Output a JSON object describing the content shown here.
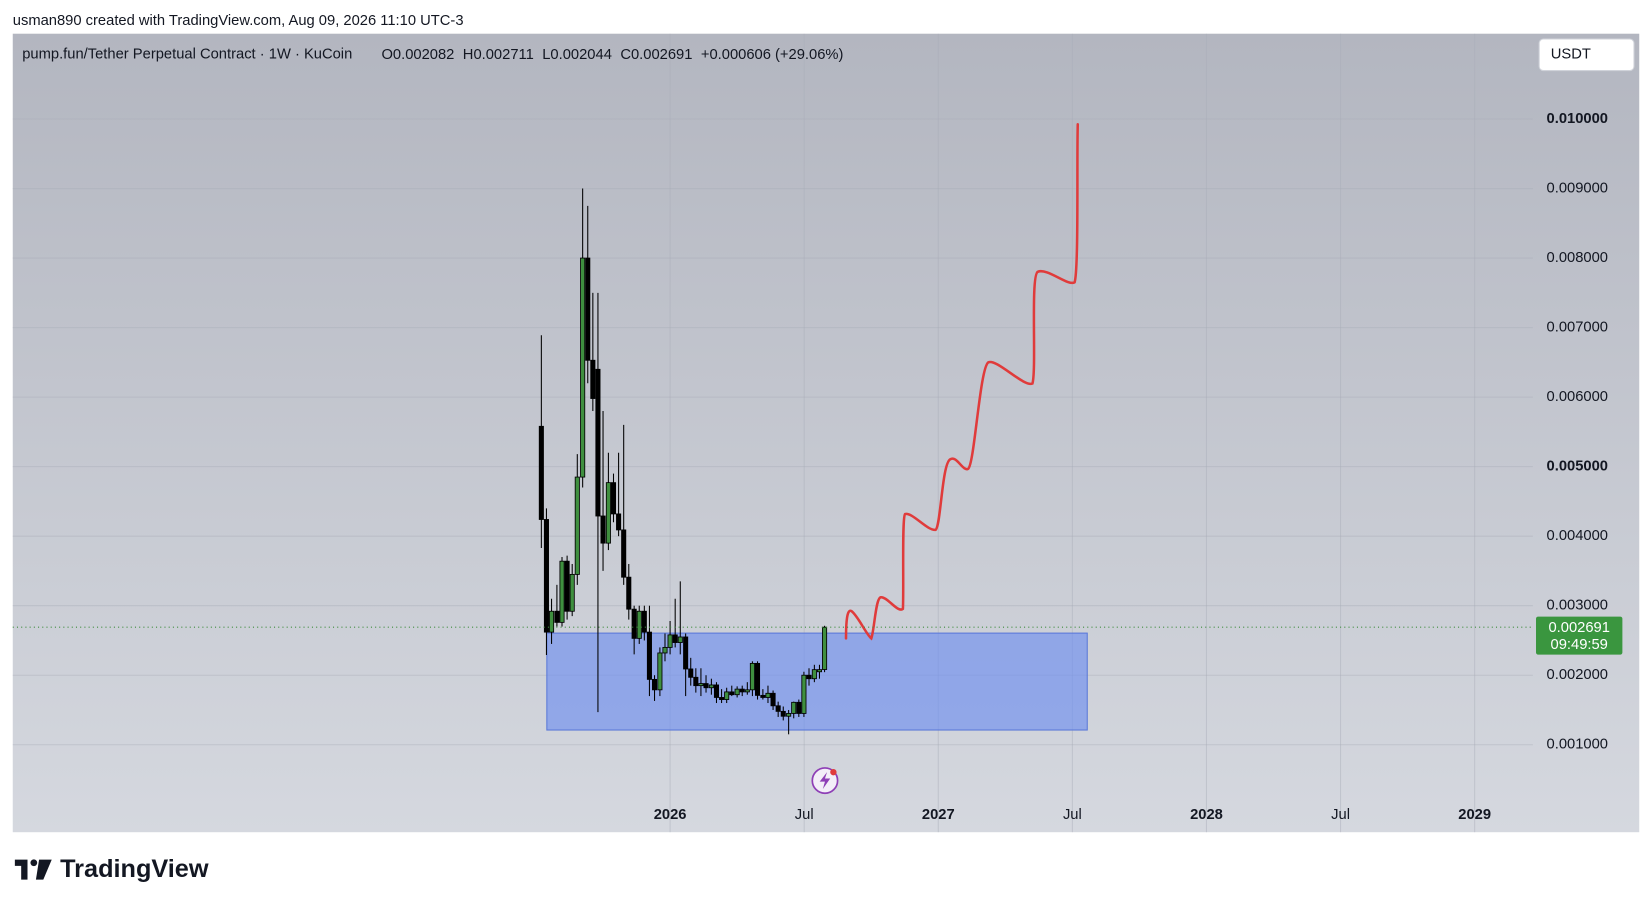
{
  "header": {
    "attribution": "usman890 created with TradingView.com, Aug 09, 2026 11:10 UTC-3"
  },
  "chart_data": {
    "type": "candlestick",
    "title": "pump.fun/Tether Perpetual Contract · 1W · KuCoin",
    "ohlc_labels": [
      "O0.002082",
      "H0.002711",
      "L0.002044",
      "C0.002691",
      "+0.000606 (+29.06%)"
    ],
    "currency": "USDT",
    "brand": "TradingView",
    "up_color": "#3f8f3f",
    "down_color": "#000000",
    "x": [
      2025.52,
      2025.539,
      2025.558,
      2025.578,
      2025.597,
      2025.616,
      2025.635,
      2025.654,
      2025.674,
      2025.693,
      2025.712,
      2025.731,
      2025.75,
      2025.77,
      2025.789,
      2025.808,
      2025.827,
      2025.846,
      2025.866,
      2025.885,
      2025.904,
      2025.923,
      2025.942,
      2025.962,
      2025.981,
      2026.0,
      2026.019,
      2026.038,
      2026.058,
      2026.077,
      2026.096,
      2026.115,
      2026.134,
      2026.154,
      2026.173,
      2026.192,
      2026.211,
      2026.23,
      2026.25,
      2026.269,
      2026.288,
      2026.307,
      2026.326,
      2026.346,
      2026.365,
      2026.384,
      2026.403,
      2026.422,
      2026.442,
      2026.461,
      2026.48,
      2026.499,
      2026.518,
      2026.538,
      2026.557,
      2026.576
    ],
    "open": [
      0.00558,
      0.00424,
      0.00262,
      0.00292,
      0.00276,
      0.00364,
      0.00292,
      0.00345,
      0.00485,
      0.008,
      0.00653,
      0.0064,
      0.00429,
      0.0039,
      0.00477,
      0.00432,
      0.00409,
      0.00341,
      0.00295,
      0.00253,
      0.00292,
      0.00262,
      0.00194,
      0.00179,
      0.00232,
      0.0024,
      0.00258,
      0.00247,
      0.00255,
      0.00209,
      0.00197,
      0.00185,
      0.00188,
      0.00182,
      0.00186,
      0.00168,
      0.00165,
      0.00176,
      0.00172,
      0.0018,
      0.00176,
      0.00179,
      0.00217,
      0.00171,
      0.00168,
      0.00174,
      0.00156,
      0.00148,
      0.00141,
      0.00145,
      0.00161,
      0.00145,
      0.002,
      0.00195,
      0.00205,
      0.002082
    ],
    "high": [
      0.00689,
      0.0044,
      0.0031,
      0.0033,
      0.0037,
      0.00372,
      0.0036,
      0.00518,
      0.009,
      0.00875,
      0.0075,
      0.0075,
      0.0058,
      0.0052,
      0.0049,
      0.0052,
      0.0056,
      0.0036,
      0.003,
      0.003,
      0.003,
      0.003,
      0.002,
      0.0024,
      0.0026,
      0.00278,
      0.0031,
      0.00335,
      0.0026,
      0.00225,
      0.0021,
      0.0021,
      0.002,
      0.00195,
      0.0019,
      0.0018,
      0.00182,
      0.00185,
      0.00184,
      0.00185,
      0.0019,
      0.0022,
      0.0022,
      0.0018,
      0.00185,
      0.00178,
      0.00162,
      0.00155,
      0.0015,
      0.00162,
      0.00165,
      0.00205,
      0.0021,
      0.00215,
      0.00215,
      0.002711
    ],
    "low": [
      0.00383,
      0.00229,
      0.00245,
      0.0027,
      0.0027,
      0.0028,
      0.00285,
      0.0033,
      0.0047,
      0.0062,
      0.0058,
      0.00147,
      0.0035,
      0.0038,
      0.0042,
      0.004,
      0.0033,
      0.0028,
      0.0023,
      0.00245,
      0.0025,
      0.0017,
      0.00163,
      0.0017,
      0.0022,
      0.0023,
      0.0024,
      0.0023,
      0.0017,
      0.00185,
      0.00175,
      0.0017,
      0.00175,
      0.00172,
      0.0016,
      0.0016,
      0.0016,
      0.0017,
      0.00168,
      0.0017,
      0.00172,
      0.0017,
      0.00165,
      0.00165,
      0.0016,
      0.0015,
      0.0014,
      0.00135,
      0.00115,
      0.00138,
      0.0014,
      0.0014,
      0.00185,
      0.0019,
      0.00195,
      0.002044
    ],
    "close": [
      0.00424,
      0.00262,
      0.00292,
      0.00276,
      0.00364,
      0.00292,
      0.00345,
      0.00485,
      0.008,
      0.00653,
      0.00598,
      0.00429,
      0.0039,
      0.00477,
      0.00432,
      0.00409,
      0.00341,
      0.00295,
      0.00253,
      0.00292,
      0.00262,
      0.00194,
      0.00179,
      0.00232,
      0.0024,
      0.00258,
      0.00247,
      0.00255,
      0.00209,
      0.00197,
      0.00185,
      0.00188,
      0.00182,
      0.00186,
      0.00168,
      0.00165,
      0.00176,
      0.00172,
      0.0018,
      0.00176,
      0.00179,
      0.00217,
      0.00171,
      0.00168,
      0.00174,
      0.00156,
      0.00148,
      0.00141,
      0.00145,
      0.00161,
      0.00145,
      0.002,
      0.00195,
      0.00208,
      0.00208,
      0.002691
    ],
    "last_price": 0.002691,
    "countdown": "09:49:59",
    "xlim": [
      2023.549,
      2029.217
    ],
    "xticks": [
      2026,
      {
        "value": 2026.5,
        "label": "Jul"
      },
      2027,
      {
        "value": 2027.5,
        "label": "Jul"
      },
      2028,
      {
        "value": 2028.5,
        "label": "Jul"
      },
      2029
    ],
    "ylim": [
      -0.000258,
      0.011227
    ],
    "yticks": [
      {
        "value": 0.001,
        "label": "0.001000"
      },
      {
        "value": 0.002,
        "label": "0.002000"
      },
      {
        "value": 0.003,
        "label": "0.003000"
      },
      {
        "value": 0.004,
        "label": "0.004000"
      },
      {
        "value": 0.005,
        "label": "0.005000"
      },
      {
        "value": 0.006,
        "label": "0.006000"
      },
      {
        "value": 0.007,
        "label": "0.007000"
      },
      {
        "value": 0.008,
        "label": "0.008000"
      },
      {
        "value": 0.009,
        "label": "0.009000"
      },
      {
        "value": 0.01,
        "label": "0.010000"
      }
    ],
    "grid": true
  }
}
